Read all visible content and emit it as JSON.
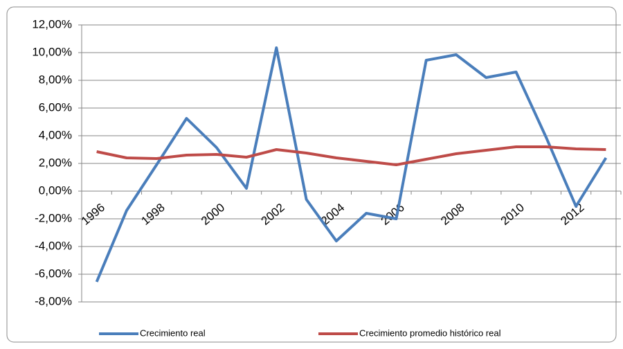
{
  "chart_data": {
    "type": "line",
    "categories": [
      "1996",
      null,
      "1998",
      null,
      "2000",
      null,
      "2002",
      null,
      "2004",
      null,
      "2006",
      null,
      "2008",
      null,
      "2010",
      null,
      "2012",
      null
    ],
    "series": [
      {
        "name": "Crecimiento real",
        "color": "#4a7ebb",
        "values": [
          -6.55,
          -1.4,
          1.9,
          5.25,
          3.15,
          0.2,
          10.35,
          -0.6,
          -3.6,
          -1.6,
          -2.0,
          9.45,
          9.85,
          8.2,
          8.6,
          3.9,
          -1.1,
          2.4
        ]
      },
      {
        "name": "Crecimiento promedio histórico real",
        "color": "#be4b48",
        "values": [
          2.85,
          2.4,
          2.35,
          2.6,
          2.65,
          2.45,
          3.0,
          2.75,
          2.4,
          2.15,
          1.9,
          2.3,
          2.7,
          2.95,
          3.2,
          3.2,
          3.05,
          3.0
        ]
      }
    ],
    "ylim": [
      -8,
      12
    ],
    "yticks": [
      {
        "value": -8,
        "label": "-8,00%"
      },
      {
        "value": -6,
        "label": "-6,00%"
      },
      {
        "value": -4,
        "label": "-4,00%"
      },
      {
        "value": -2,
        "label": "-2,00%"
      },
      {
        "value": 0,
        "label": "0,00%"
      },
      {
        "value": 2,
        "label": "2,00%"
      },
      {
        "value": 4,
        "label": "4,00%"
      },
      {
        "value": 6,
        "label": "6,00%"
      },
      {
        "value": 8,
        "label": "8,00%"
      },
      {
        "value": 10,
        "label": "10,00%"
      },
      {
        "value": 12,
        "label": "12,00%"
      }
    ],
    "grid": true,
    "legend": "bottom"
  }
}
